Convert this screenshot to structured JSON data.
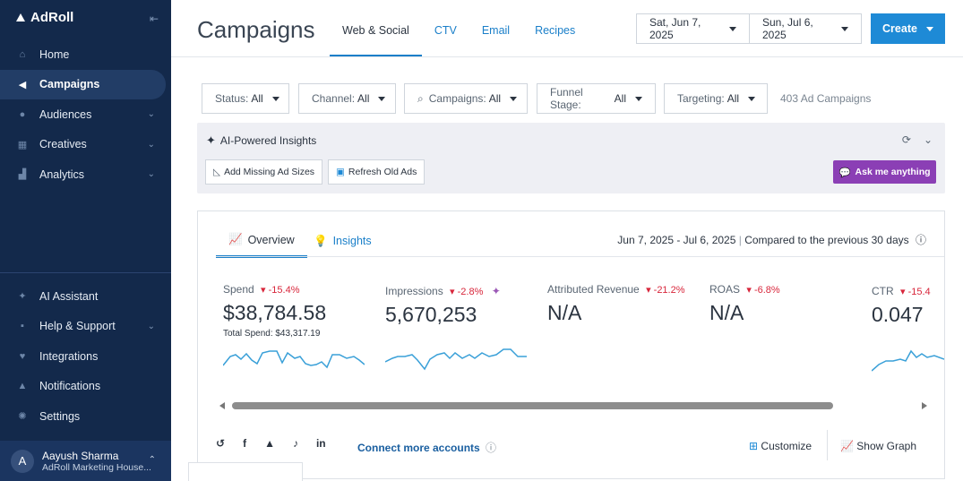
{
  "sidebar": {
    "logo": "AdRoll",
    "items_top": [
      {
        "label": "Home",
        "icon": "home-icon"
      },
      {
        "label": "Campaigns",
        "icon": "megaphone-icon",
        "active": true
      },
      {
        "label": "Audiences",
        "icon": "people-icon",
        "chevron": true
      },
      {
        "label": "Creatives",
        "icon": "grid-icon",
        "chevron": true
      },
      {
        "label": "Analytics",
        "icon": "chart-icon",
        "chevron": true
      }
    ],
    "items_bottom": [
      {
        "label": "AI Assistant",
        "icon": "sparkle-icon"
      },
      {
        "label": "Help & Support",
        "icon": "help-icon",
        "chevron": true
      },
      {
        "label": "Integrations",
        "icon": "plug-icon"
      },
      {
        "label": "Notifications",
        "icon": "bell-icon"
      },
      {
        "label": "Settings",
        "icon": "gear-icon"
      }
    ],
    "user": {
      "initial": "A",
      "name": "Aayush Sharma",
      "org": "AdRoll Marketing House..."
    }
  },
  "header": {
    "title": "Campaigns",
    "tabs": [
      "Web & Social",
      "CTV",
      "Email",
      "Recipes"
    ],
    "start_date": "Sat, Jun 7, 2025",
    "end_date": "Sun, Jul 6, 2025",
    "create_label": "Create"
  },
  "filters": [
    {
      "label": "Status:",
      "value": "All"
    },
    {
      "label": "Channel:",
      "value": "All"
    },
    {
      "label": "Campaigns:",
      "value": "All"
    },
    {
      "label": "Funnel Stage:",
      "value": "All"
    },
    {
      "label": "Targeting:",
      "value": "All"
    }
  ],
  "campaign_count": "403 Ad Campaigns",
  "ai": {
    "title": "AI-Powered Insights",
    "btn_missing": "Add Missing Ad Sizes",
    "btn_refresh": "Refresh Old Ads",
    "ask": "Ask me anything"
  },
  "card": {
    "tab_overview": "Overview",
    "tab_insights": "Insights",
    "range": "Jun 7, 2025 - Jul 6, 2025",
    "compare": "Compared to the previous 30 days",
    "metrics": [
      {
        "label": "Spend",
        "delta": "-15.4%",
        "value": "$38,784.58",
        "sub": "Total Spend: $43,317.19"
      },
      {
        "label": "Impressions",
        "delta": "-2.8%",
        "value": "5,670,253",
        "sub": ""
      },
      {
        "label": "Attributed Revenue",
        "delta": "-21.2%",
        "value": "N/A",
        "sub": ""
      },
      {
        "label": "ROAS",
        "delta": "-6.8%",
        "value": "N/A",
        "sub": ""
      },
      {
        "label": "CTR",
        "delta": "-15.4",
        "value": "0.047",
        "sub": ""
      }
    ],
    "connect": "Connect more accounts",
    "customize": "Customize",
    "show_graph": "Show Graph"
  },
  "colors": {
    "sidebar": "#13294b",
    "accent": "#1e8ad6",
    "ai_purple": "#8b3fb5",
    "negative": "#d8263b",
    "spark": "#3aa0d8"
  }
}
